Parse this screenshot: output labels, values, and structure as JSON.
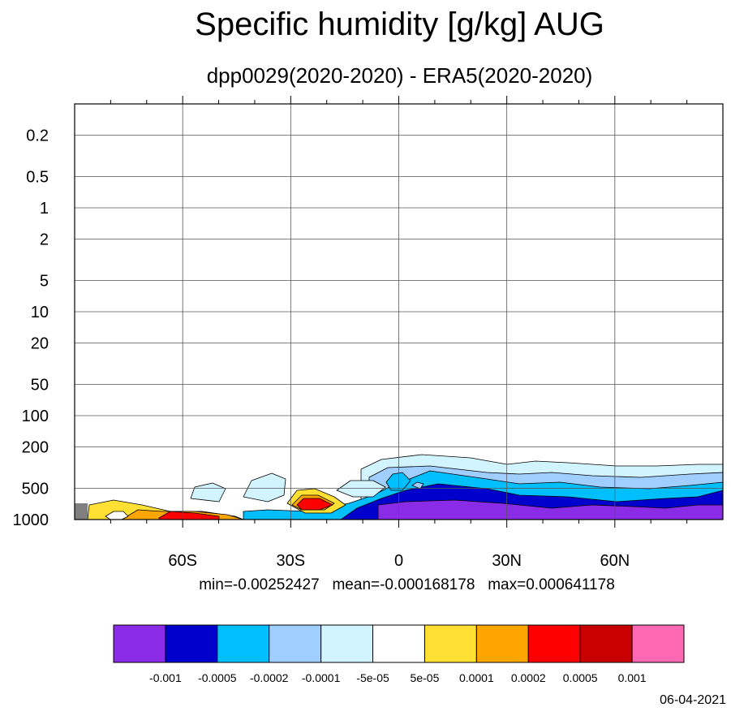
{
  "chart_data": {
    "type": "contour",
    "title": "Specific humidity [g/kg] AUG",
    "subtitle": "dpp0029(2020-2020) - ERA5(2020-2020)",
    "x_axis": {
      "type": "latitude",
      "range": [
        -90,
        90
      ],
      "ticks": [
        -60,
        -30,
        0,
        30,
        60
      ],
      "tick_labels": [
        "60S",
        "30S",
        "0",
        "30N",
        "60N"
      ]
    },
    "y_axis": {
      "type": "pressure (log scale, inverted)",
      "range": [
        1000,
        0.1
      ],
      "ticks": [
        0.2,
        0.5,
        1,
        2,
        5,
        10,
        20,
        50,
        100,
        200,
        500,
        1000
      ],
      "tick_labels": [
        "0.2",
        "0.5",
        "1",
        "2",
        "5",
        "10",
        "20",
        "50",
        "100",
        "200",
        "500",
        "1000"
      ]
    },
    "grid": true,
    "stats": {
      "min": "min=-0.00252427",
      "mean": "mean=-0.000168178",
      "max": "max=0.000641178"
    },
    "colorbar": {
      "placement": "bottom",
      "levels": [
        "-0.001",
        "-0.0005",
        "-0.0002",
        "-0.0001",
        "-5e-05",
        "5e-05",
        "0.0001",
        "0.0002",
        "0.0005",
        "0.001"
      ],
      "colors": [
        "#8a2be8",
        "#0000cd",
        "#00bfff",
        "#a0ceff",
        "#d2f4ff",
        "#ffffff",
        "#ffe033",
        "#ffa500",
        "#ff0000",
        "#c80000",
        "#ff69b4"
      ]
    },
    "date": "06-04-2021"
  }
}
